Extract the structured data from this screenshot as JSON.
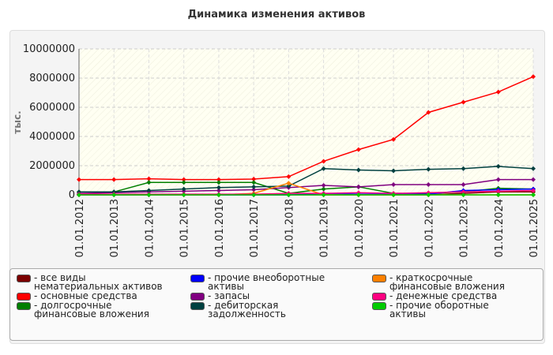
{
  "chart_data": {
    "type": "line",
    "title": "Динамика изменения активов",
    "y_label": "тыс.",
    "categories": [
      "01.01.2012",
      "01.01.2013",
      "01.01.2014",
      "01.01.2015",
      "01.01.2016",
      "01.01.2017",
      "01.01.2018",
      "01.01.2019",
      "01.01.2020",
      "01.01.2021",
      "01.01.2022",
      "01.01.2023",
      "01.01.2024",
      "01.01.2025"
    ],
    "ylim": [
      0,
      10000000
    ],
    "yticks": [
      0,
      2000000,
      4000000,
      6000000,
      8000000,
      10000000
    ],
    "grid": true,
    "series": [
      {
        "name": "- все виды нематериальных активов",
        "color": "#7b0000",
        "values": [
          0,
          0,
          0,
          0,
          0,
          0,
          0,
          0,
          0,
          0,
          0,
          100000,
          200000,
          200000
        ]
      },
      {
        "name": "- основные средства",
        "color": "#ff0000",
        "values": [
          1050000,
          1050000,
          1100000,
          1050000,
          1050000,
          1080000,
          1250000,
          2300000,
          3100000,
          3800000,
          5650000,
          6350000,
          7050000,
          8100000
        ]
      },
      {
        "name": "- долгосрочные финансовые вложения",
        "color": "#007f00",
        "values": [
          200000,
          200000,
          850000,
          850000,
          850000,
          850000,
          100000,
          400000,
          550000,
          100000,
          100000,
          200000,
          450000,
          400000
        ]
      },
      {
        "name": "- прочие внеоборотные активы",
        "color": "#0000ff",
        "values": [
          0,
          0,
          0,
          0,
          0,
          0,
          0,
          100000,
          50000,
          50000,
          50000,
          300000,
          350000,
          400000
        ]
      },
      {
        "name": "- запасы",
        "color": "#800080",
        "values": [
          100000,
          150000,
          200000,
          250000,
          300000,
          350000,
          500000,
          650000,
          550000,
          700000,
          700000,
          700000,
          1050000,
          1050000
        ]
      },
      {
        "name": "- дебиторская задолженность",
        "color": "#004040",
        "values": [
          200000,
          200000,
          300000,
          400000,
          500000,
          550000,
          600000,
          1800000,
          1700000,
          1650000,
          1750000,
          1800000,
          1950000,
          1800000
        ]
      },
      {
        "name": "- краткосрочные финансовые вложения",
        "color": "#ff8000",
        "values": [
          0,
          0,
          0,
          0,
          0,
          100000,
          800000,
          0,
          0,
          0,
          0,
          0,
          0,
          0
        ]
      },
      {
        "name": "- денежные средства",
        "color": "#ff0080",
        "values": [
          50000,
          50000,
          50000,
          50000,
          50000,
          50000,
          100000,
          100000,
          150000,
          100000,
          150000,
          200000,
          250000,
          300000
        ]
      },
      {
        "name": "- прочие оборотные активы",
        "color": "#00cc00",
        "values": [
          0,
          0,
          0,
          0,
          0,
          0,
          0,
          0,
          0,
          0,
          0,
          0,
          0,
          0
        ]
      }
    ]
  }
}
